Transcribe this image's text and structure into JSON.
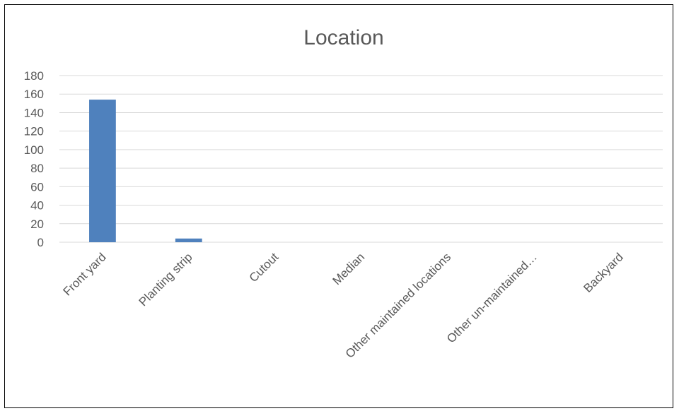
{
  "chart_data": {
    "type": "bar",
    "title": "Location",
    "categories": [
      "Front yard",
      "Planting strip",
      "Cutout",
      "Median",
      "Other maintained locations",
      "Other un-maintained…",
      "Backyard"
    ],
    "values": [
      154,
      4,
      0,
      0,
      0,
      0,
      0
    ],
    "ylim": [
      0,
      180
    ],
    "yticks": [
      0,
      20,
      40,
      60,
      80,
      100,
      120,
      140,
      160,
      180
    ],
    "xlabel": "",
    "ylabel": "",
    "grid": true,
    "legend": "none",
    "colors": {
      "bar": "#4F81BD",
      "grid": "#D9D9D9",
      "text": "#595959"
    }
  }
}
